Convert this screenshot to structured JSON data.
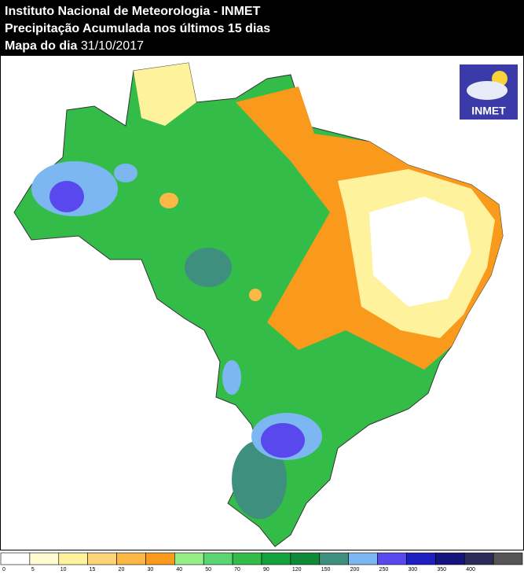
{
  "header": {
    "title": "Instituto Nacional de Meteorologia - INMET",
    "subtitle": "Precipitação Acumulada nos últimos 15 dias",
    "date_label": "Mapa do dia",
    "date": "31/10/2017"
  },
  "logo": {
    "text": "INMET"
  },
  "legend": {
    "ticks": [
      0,
      5,
      10,
      15,
      20,
      30,
      40,
      50,
      70,
      90,
      120,
      150,
      200,
      250,
      300,
      350,
      400
    ],
    "colors": [
      "#ffffff",
      "#fffbd2",
      "#fff29c",
      "#fdd477",
      "#fbb844",
      "#f99a1c",
      "#96ef84",
      "#5bd472",
      "#33bd48",
      "#14a23c",
      "#0e8a38",
      "#3e8f7e",
      "#7db7f2",
      "#5848ee",
      "#1e1fc0",
      "#15137e",
      "#2c2b58",
      "#555555"
    ]
  }
}
